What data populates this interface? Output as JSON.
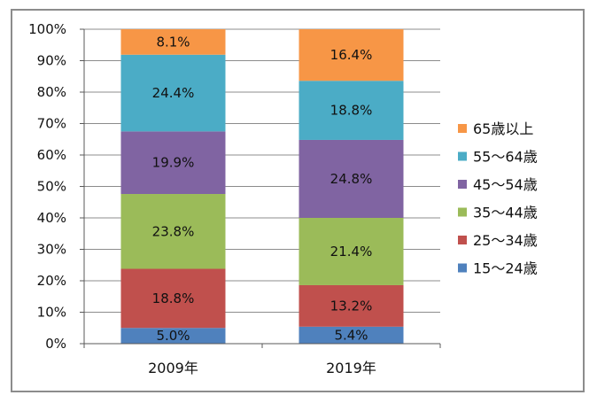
{
  "chart_data": {
    "type": "bar",
    "stacked": true,
    "percent": true,
    "categories": [
      "2009年",
      "2019年"
    ],
    "series": [
      {
        "name": "15～24歳",
        "values": [
          5.0,
          5.4
        ],
        "labels": [
          "5.0%",
          "5.4%"
        ],
        "color": "#4F81BD"
      },
      {
        "name": "25～34歳",
        "values": [
          18.8,
          13.2
        ],
        "labels": [
          "18.8%",
          "13.2%"
        ],
        "color": "#C0504D"
      },
      {
        "name": "35～44歳",
        "values": [
          23.8,
          21.4
        ],
        "labels": [
          "23.8%",
          "21.4%"
        ],
        "color": "#9BBB59"
      },
      {
        "name": "45～54歳",
        "values": [
          19.9,
          24.8
        ],
        "labels": [
          "19.9%",
          "24.8%"
        ],
        "color": "#8064A2"
      },
      {
        "name": "55～64歳",
        "values": [
          24.4,
          18.8
        ],
        "labels": [
          "24.4%",
          "18.8%"
        ],
        "color": "#4BACC6"
      },
      {
        "name": "65歳以上",
        "values": [
          8.1,
          16.4
        ],
        "labels": [
          "8.1%",
          "16.4%"
        ],
        "color": "#F79646"
      }
    ],
    "y_ticks": [
      "0%",
      "10%",
      "20%",
      "30%",
      "40%",
      "50%",
      "60%",
      "70%",
      "80%",
      "90%",
      "100%"
    ],
    "ylim": [
      0,
      100
    ],
    "grid": true,
    "legend": "right",
    "gridline_color": "#8c8c8c",
    "axis_color": "#595959"
  }
}
